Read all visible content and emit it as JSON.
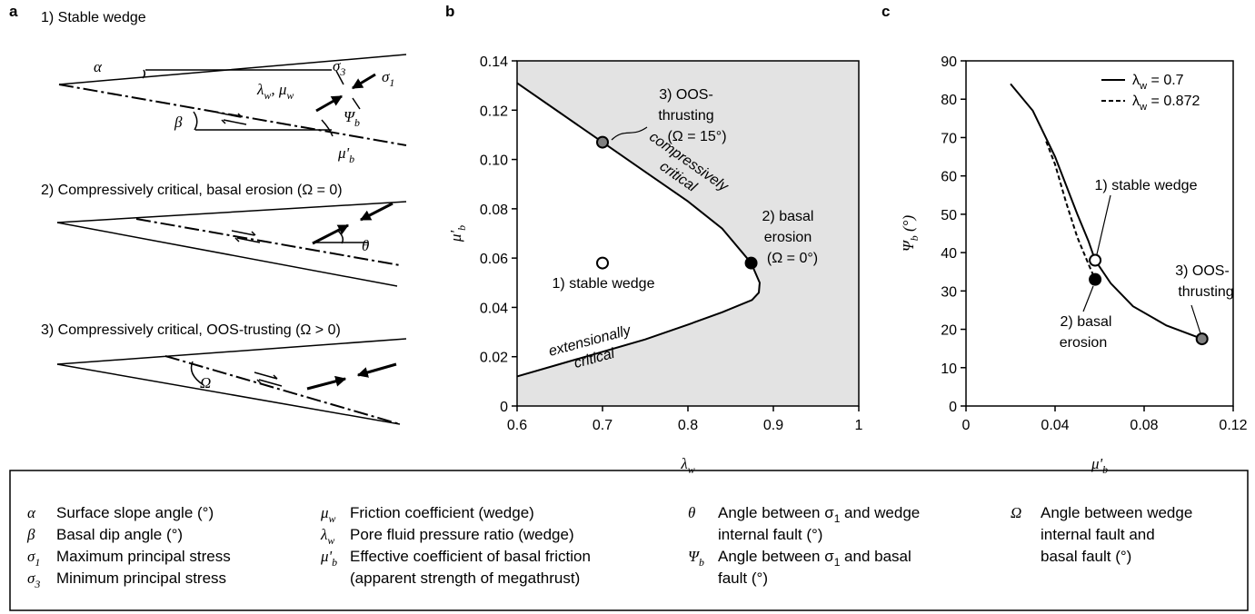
{
  "panel_a": {
    "panel": "a",
    "wedge_1": {
      "title": "1) Stable wedge",
      "alpha": "α",
      "wedge_params": [
        "λ",
        {
          "sub": "w"
        },
        ", μ",
        {
          "sub": "w"
        }
      ],
      "sigma_3": [
        "σ",
        {
          "sub": "3"
        }
      ],
      "sigma_1": [
        "σ",
        {
          "sub": "1"
        }
      ],
      "psi": [
        "Ψ",
        {
          "sub": "b"
        }
      ],
      "beta": "β",
      "mu_b": [
        "μ'",
        {
          "sub": "b"
        }
      ]
    },
    "wedge_2": {
      "title": "2) Compressively critical, basal erosion (Ω = 0)",
      "theta": "θ"
    },
    "wedge_3": {
      "title": "3) Compressively critical, OOS-trusting (Ω > 0)",
      "omega": "Ω"
    }
  },
  "chart_data": [
    {
      "type": "line",
      "panel": "b",
      "xlabel": [
        "λ",
        {
          "sub": "w"
        }
      ],
      "ylabel": [
        "μ'",
        {
          "sub": "b"
        }
      ],
      "xlim": [
        0.6,
        1
      ],
      "xticks": [
        0.6,
        0.7,
        0.8,
        0.9,
        1
      ],
      "ylim": [
        0,
        0.14
      ],
      "yticks": [
        0,
        0.02,
        0.04,
        0.06,
        0.08,
        {
          "value": 0.1,
          "label": "0.10"
        },
        0.12,
        0.14
      ],
      "shade": "#e3e3e3",
      "series": [
        {
          "color": "#000000",
          "x": [
            0.6,
            0.65,
            0.7,
            0.75,
            0.8,
            0.84,
            0.874,
            0.884,
            0.883,
            0.875,
            0.84,
            0.8,
            0.75,
            0.7,
            0.65,
            0.6
          ],
          "values": [
            0.131,
            0.119,
            0.107,
            0.095,
            0.083,
            0.072,
            0.058,
            0.05,
            0.046,
            0.043,
            0.038,
            0.033,
            0.027,
            0.022,
            0.017,
            0.012
          ]
        }
      ],
      "points": [
        {
          "x": 0.7,
          "y": 0.107,
          "fill": "#808080",
          "label": [
            "3) OOS-",
            "thrusting",
            "(Ω = 15°)"
          ]
        },
        {
          "x": 0.874,
          "y": 0.058,
          "fill": "#000000",
          "label": [
            "2) basal",
            "erosion",
            "(Ω = 0°)"
          ]
        },
        {
          "x": 0.7,
          "y": 0.058,
          "fill": "#ffffff",
          "label": [
            "1) stable wedge"
          ]
        }
      ],
      "annotations": [
        [
          "compressively",
          "critical"
        ],
        [
          "extensionally",
          "critical"
        ]
      ]
    },
    {
      "type": "line",
      "panel": "c",
      "xlabel": [
        "μ'",
        {
          "sub": "b"
        }
      ],
      "ylabel": [
        "Ψ",
        {
          "sub": "b"
        },
        " (°)"
      ],
      "xlim": [
        0,
        0.12
      ],
      "xticks": [
        0,
        0.04,
        0.08,
        0.12
      ],
      "ylim": [
        0,
        90
      ],
      "yticks": [
        0,
        10,
        20,
        30,
        40,
        50,
        60,
        70,
        80,
        90
      ],
      "legend": "upper right",
      "series": [
        {
          "name": [
            "λ",
            {
              "sub": "w"
            },
            " = 0.7"
          ],
          "color": "#000000",
          "dash": "solid",
          "x": [
            0.02,
            0.03,
            0.04,
            0.05,
            0.055,
            0.058,
            0.065,
            0.075,
            0.09,
            0.106
          ],
          "values": [
            84,
            77,
            65,
            50,
            43,
            38,
            32,
            26,
            21,
            17.5
          ]
        },
        {
          "name": [
            "λ",
            {
              "sub": "w"
            },
            " = 0.872"
          ],
          "color": "#000000",
          "dash": "dashed",
          "x": [
            0.036,
            0.04,
            0.045,
            0.05,
            0.055,
            0.058
          ],
          "values": [
            69,
            63,
            53,
            44,
            37,
            33
          ]
        }
      ],
      "points": [
        {
          "x": 0.058,
          "y": 38,
          "fill": "#ffffff",
          "label": [
            "1) stable wedge"
          ]
        },
        {
          "x": 0.058,
          "y": 33,
          "fill": "#000000",
          "label": [
            "2) basal",
            "erosion"
          ]
        },
        {
          "x": 0.106,
          "y": 17.5,
          "fill": "#808080",
          "label": [
            "3) OOS-",
            "thrusting"
          ]
        }
      ]
    }
  ],
  "legend_box": {
    "columns": [
      [
        {
          "symbol": "α",
          "text": [
            "Surface slope angle (°)"
          ]
        },
        {
          "symbol": "β",
          "text": [
            "Basal dip angle (°)"
          ]
        },
        {
          "symbol": [
            "σ",
            {
              "sub": "1"
            }
          ],
          "text": [
            "Maximum principal stress"
          ]
        },
        {
          "symbol": [
            "σ",
            {
              "sub": "3"
            }
          ],
          "text": [
            "Minimum principal stress"
          ]
        }
      ],
      [
        {
          "symbol": [
            "μ",
            {
              "sub": "w"
            }
          ],
          "text": [
            "Friction coefficient (wedge)"
          ]
        },
        {
          "symbol": [
            "λ",
            {
              "sub": "w"
            }
          ],
          "text": [
            "Pore fluid pressure ratio (wedge)"
          ]
        },
        {
          "symbol": [
            "μ'",
            {
              "sub": "b"
            }
          ],
          "text": [
            "Effective coefficient of basal friction",
            "(apparent strength of megathrust)"
          ]
        }
      ],
      [
        {
          "symbol": "θ",
          "text": [
            [
              "Angle between σ",
              {
                "sub": "1"
              },
              " and wedge"
            ],
            "internal fault (°)"
          ]
        },
        {
          "symbol": [
            "Ψ",
            {
              "sub": "b"
            }
          ],
          "text": [
            [
              "Angle between σ",
              {
                "sub": "1"
              },
              " and basal"
            ],
            "fault (°)"
          ]
        }
      ],
      [
        {
          "symbol": "Ω",
          "text": [
            "Angle between wedge",
            "internal fault and",
            "basal fault (°)"
          ]
        }
      ]
    ]
  }
}
